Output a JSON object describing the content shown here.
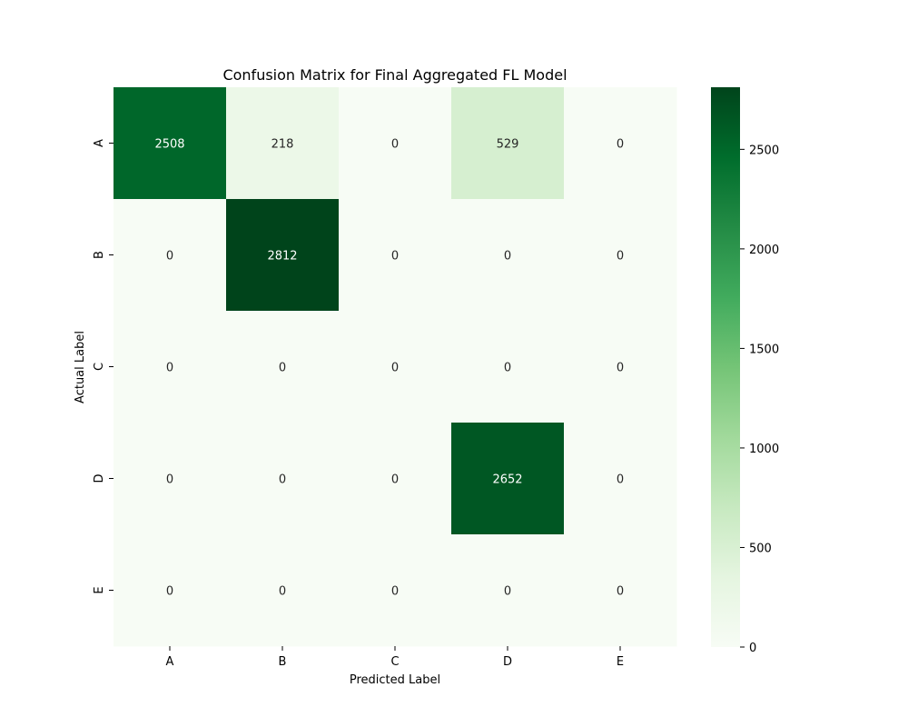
{
  "chart_data": {
    "type": "heatmap",
    "title": "Confusion Matrix for Final Aggregated FL Model",
    "xlabel": "Predicted Label",
    "ylabel": "Actual Label",
    "x_categories": [
      "A",
      "B",
      "C",
      "D",
      "E"
    ],
    "y_categories": [
      "A",
      "B",
      "C",
      "D",
      "E"
    ],
    "values": [
      [
        2508,
        218,
        0,
        529,
        0
      ],
      [
        0,
        2812,
        0,
        0,
        0
      ],
      [
        0,
        0,
        0,
        0,
        0
      ],
      [
        0,
        0,
        0,
        2652,
        0
      ],
      [
        0,
        0,
        0,
        0,
        0
      ]
    ],
    "colorbar": {
      "range": [
        0,
        2812
      ],
      "ticks": [
        0,
        500,
        1000,
        1500,
        2000,
        2500
      ],
      "colormap": "Greens"
    }
  }
}
